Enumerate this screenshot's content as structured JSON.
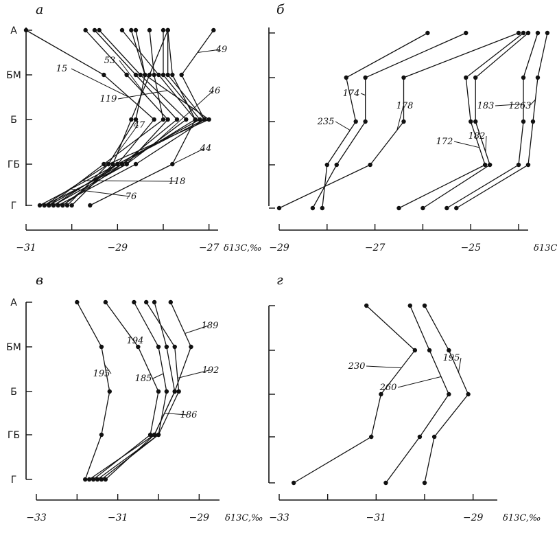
{
  "chart_data": [
    {
      "type": "line",
      "panel": "а",
      "categories": [
        "А",
        "БМ",
        "Б",
        "ГБ",
        "Г"
      ],
      "x_ticks": [
        -31,
        -29,
        -27
      ],
      "xlabel": "δ13C,‰",
      "xlim": [
        -31,
        -26.8
      ],
      "series": [
        {
          "name": "15",
          "values": [
            -31,
            -29.3,
            -28.2,
            -29.0,
            -30.7
          ]
        },
        {
          "name": "53",
          "values": [
            -29.7,
            -28.8,
            -27.9,
            -28.8,
            -30.6
          ]
        },
        {
          "name": "",
          "values": [
            -29.5,
            -28.6,
            -27.7,
            -28.9,
            -30.5
          ]
        },
        {
          "name": "",
          "values": [
            -29.4,
            -28.5,
            -27.5,
            -28.8,
            -30.4
          ]
        },
        {
          "name": "49",
          "values": [
            -26.9,
            -27.6,
            -27.1,
            -28.6,
            -30.3
          ]
        },
        {
          "name": "46",
          "values": [
            -28.9,
            -28.1,
            -27.3,
            -28.9,
            -30.2
          ]
        },
        {
          "name": "119",
          "values": [
            -28.6,
            -28.4,
            -27.0,
            -29.2,
            -30.1
          ]
        },
        {
          "name": "47",
          "values": [
            -27.9,
            -28.3,
            -28.7,
            -29.1,
            -30.0
          ]
        },
        {
          "name": "",
          "values": [
            -28.0,
            -28.0,
            -27.2,
            -29.0,
            -30.4
          ]
        },
        {
          "name": "",
          "values": [
            -27.9,
            -27.9,
            -27.1,
            -29.0,
            -30.2
          ]
        },
        {
          "name": "118",
          "values": [
            -28.3,
            -28.2,
            -28.0,
            -29.3,
            -30.5
          ]
        },
        {
          "name": "76",
          "values": [
            -28.7,
            -28.4,
            -28.6,
            -29.2,
            -30.6
          ]
        },
        {
          "name": "44",
          "values": [
            -27.9,
            -27.8,
            -27.3,
            -27.8,
            -29.6
          ]
        }
      ]
    },
    {
      "type": "line",
      "panel": "б",
      "categories": [
        "А",
        "БМ",
        "Б",
        "ГБ",
        "Г"
      ],
      "x_ticks": [
        -29,
        -27,
        -25
      ],
      "xlabel": "δ13C,‰",
      "xlim": [
        -29,
        -23.8
      ],
      "series": [
        {
          "name": "235",
          "values": [
            -25.9,
            -27.6,
            -27.4,
            -28.0,
            -28.1
          ]
        },
        {
          "name": "174",
          "values": [
            -25.1,
            -27.2,
            -27.2,
            -27.8,
            -28.3
          ]
        },
        {
          "name": "178",
          "values": [
            -24.0,
            -26.4,
            -26.4,
            -27.1,
            -29.0
          ]
        },
        {
          "name": "172",
          "values": [
            -23.9,
            -25.1,
            -25.0,
            -24.7,
            -26.5
          ]
        },
        {
          "name": "182",
          "values": [
            -23.8,
            -24.9,
            -24.9,
            -24.6,
            -26.0
          ]
        },
        {
          "name": "183",
          "values": [
            -23.6,
            -23.9,
            -23.9,
            -24.0,
            -25.5
          ]
        },
        {
          "name": "1263",
          "values": [
            -23.4,
            -23.6,
            -23.7,
            -23.8,
            -25.3
          ]
        }
      ]
    },
    {
      "type": "line",
      "panel": "в",
      "categories": [
        "А",
        "БМ",
        "Б",
        "ГБ",
        "Г"
      ],
      "x_ticks": [
        -33,
        -31,
        -29
      ],
      "xlabel": "δ13C,‰",
      "xlim": [
        -33,
        -28.5
      ],
      "series": [
        {
          "name": "195",
          "values": [
            -32.0,
            -31.4,
            -31.2,
            -31.4,
            -31.8
          ]
        },
        {
          "name": "194",
          "values": [
            -31.3,
            -30.5,
            -30.0,
            -30.2,
            -31.6
          ]
        },
        {
          "name": "185",
          "values": [
            -30.6,
            -30.0,
            -29.8,
            -30.0,
            -31.5
          ]
        },
        {
          "name": "192",
          "values": [
            -30.3,
            -29.6,
            -29.5,
            -30.0,
            -31.4
          ]
        },
        {
          "name": "186",
          "values": [
            -30.1,
            -29.8,
            -29.6,
            -30.1,
            -31.7
          ]
        },
        {
          "name": "189",
          "values": [
            -29.7,
            -29.2,
            -29.6,
            -30.1,
            -31.3
          ]
        }
      ]
    },
    {
      "type": "line",
      "panel": "г",
      "categories": [
        "А",
        "БМ",
        "Б",
        "ГБ",
        "Г"
      ],
      "x_ticks": [
        -33,
        -31,
        -29
      ],
      "xlabel": "δ13C,‰",
      "xlim": [
        -33,
        -28.5
      ],
      "series": [
        {
          "name": "230",
          "values": [
            -31.2,
            -30.2,
            -30.9,
            -31.1,
            -32.7
          ]
        },
        {
          "name": "260",
          "values": [
            -30.3,
            -29.9,
            -29.5,
            -30.1,
            -30.8
          ]
        },
        {
          "name": "195",
          "values": [
            -30.0,
            -29.5,
            -29.1,
            -29.8,
            -30.0
          ]
        }
      ]
    }
  ]
}
